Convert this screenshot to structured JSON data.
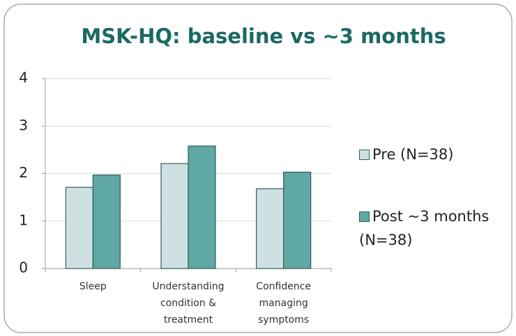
{
  "chart_data": {
    "type": "bar",
    "title": "MSK-HQ: baseline vs ~3 months",
    "categories": [
      "Sleep",
      "Understanding condition & treatment",
      "Confidence managing symptoms"
    ],
    "series": [
      {
        "name": "Pre (N=38)",
        "color": "#cfe0e3",
        "values": [
          1.71,
          2.21,
          1.68
        ]
      },
      {
        "name": "Post ~3 months (N=38)",
        "color": "#5fa8a3",
        "values": [
          1.97,
          2.58,
          2.03
        ]
      }
    ],
    "ylim": [
      0,
      4
    ],
    "yticks": [
      0,
      1,
      2,
      3,
      4
    ],
    "grid": true,
    "legend": "right"
  }
}
